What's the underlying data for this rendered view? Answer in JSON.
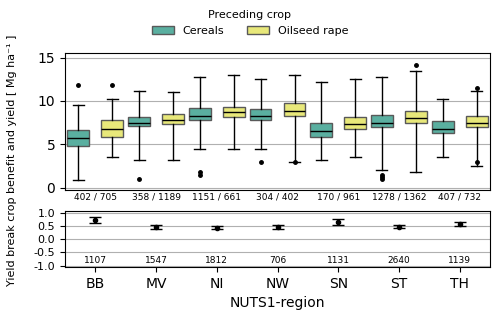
{
  "chart_data": [
    {
      "type": "box",
      "categories": [
        "BB",
        "MV",
        "NI",
        "NW",
        "SN",
        "ST",
        "TH"
      ],
      "series": [
        {
          "name": "Cereals",
          "color": "#5aafa0",
          "boxes": [
            {
              "q1": 4.8,
              "median": 5.7,
              "q3": 6.7,
              "whislo": 0.9,
              "whishi": 9.5,
              "fliers": [
                11.8
              ]
            },
            {
              "q1": 7.1,
              "median": 7.5,
              "q3": 8.2,
              "whislo": 3.2,
              "whishi": 11.2,
              "fliers": [
                1.0
              ]
            },
            {
              "q1": 7.8,
              "median": 8.3,
              "q3": 9.2,
              "whislo": 4.5,
              "whishi": 12.8,
              "fliers": [
                1.5,
                1.8
              ]
            },
            {
              "q1": 7.8,
              "median": 8.3,
              "q3": 9.1,
              "whislo": 4.5,
              "whishi": 12.5,
              "fliers": [
                3.0
              ]
            },
            {
              "q1": 5.8,
              "median": 6.5,
              "q3": 7.5,
              "whislo": 3.2,
              "whishi": 12.2,
              "fliers": []
            },
            {
              "q1": 7.0,
              "median": 7.5,
              "q3": 8.4,
              "whislo": 2.0,
              "whishi": 12.8,
              "fliers": [
                1.0,
                1.2,
                1.5
              ]
            },
            {
              "q1": 6.3,
              "median": 6.8,
              "q3": 7.7,
              "whislo": 3.5,
              "whishi": 10.2,
              "fliers": []
            }
          ]
        },
        {
          "name": "Oilseed rape",
          "color": "#e8e87a",
          "boxes": [
            {
              "q1": 5.8,
              "median": 6.8,
              "q3": 7.8,
              "whislo": 3.5,
              "whishi": 10.2,
              "fliers": [
                11.8
              ]
            },
            {
              "q1": 7.4,
              "median": 7.8,
              "q3": 8.5,
              "whislo": 3.2,
              "whishi": 11.0,
              "fliers": []
            },
            {
              "q1": 8.2,
              "median": 8.7,
              "q3": 9.3,
              "whislo": 4.5,
              "whishi": 13.0,
              "fliers": []
            },
            {
              "q1": 8.3,
              "median": 8.8,
              "q3": 9.8,
              "whislo": 3.0,
              "whishi": 13.0,
              "fliers": [
                3.0
              ]
            },
            {
              "q1": 6.8,
              "median": 7.3,
              "q3": 8.2,
              "whislo": 3.5,
              "whishi": 12.5,
              "fliers": []
            },
            {
              "q1": 7.5,
              "median": 8.0,
              "q3": 8.8,
              "whislo": 1.8,
              "whishi": 13.5,
              "fliers": [
                14.2
              ]
            },
            {
              "q1": 7.0,
              "median": 7.5,
              "q3": 8.3,
              "whislo": 2.5,
              "whishi": 11.2,
              "fliers": [
                3.0,
                11.5
              ]
            }
          ]
        }
      ],
      "annotations": [
        "402 / 705",
        "358 / 1189",
        "1151 / 661",
        "304 / 402",
        "170 / 961",
        "1278 / 1362",
        "407 / 732"
      ],
      "ylabel": "Yield break crop benefit and yield [ Mg ha⁻¹ ]",
      "legend_title": "Preceding crop",
      "legend": "upper center",
      "ylim": [
        -0.3,
        15.5
      ],
      "yticks": [
        0,
        5,
        10,
        15
      ],
      "grid": true,
      "tick_labels": "y"
    },
    {
      "type": "errorbar",
      "categories": [
        "BB",
        "MV",
        "NI",
        "NW",
        "SN",
        "ST",
        "TH"
      ],
      "values": [
        0.72,
        0.47,
        0.43,
        0.45,
        0.65,
        0.47,
        0.57
      ],
      "ci_low": [
        0.62,
        0.4,
        0.37,
        0.38,
        0.55,
        0.42,
        0.49
      ],
      "ci_high": [
        0.82,
        0.54,
        0.49,
        0.52,
        0.75,
        0.52,
        0.65
      ],
      "annotations": [
        "1107",
        "1547",
        "1812",
        "706",
        "1131",
        "2640",
        "1139"
      ],
      "xlabel": "NUTS1-region",
      "ylim": [
        -1.05,
        1.05
      ],
      "yticks": [
        -1.0,
        -0.5,
        0.0,
        0.5,
        1.0
      ],
      "grid": true
    }
  ]
}
